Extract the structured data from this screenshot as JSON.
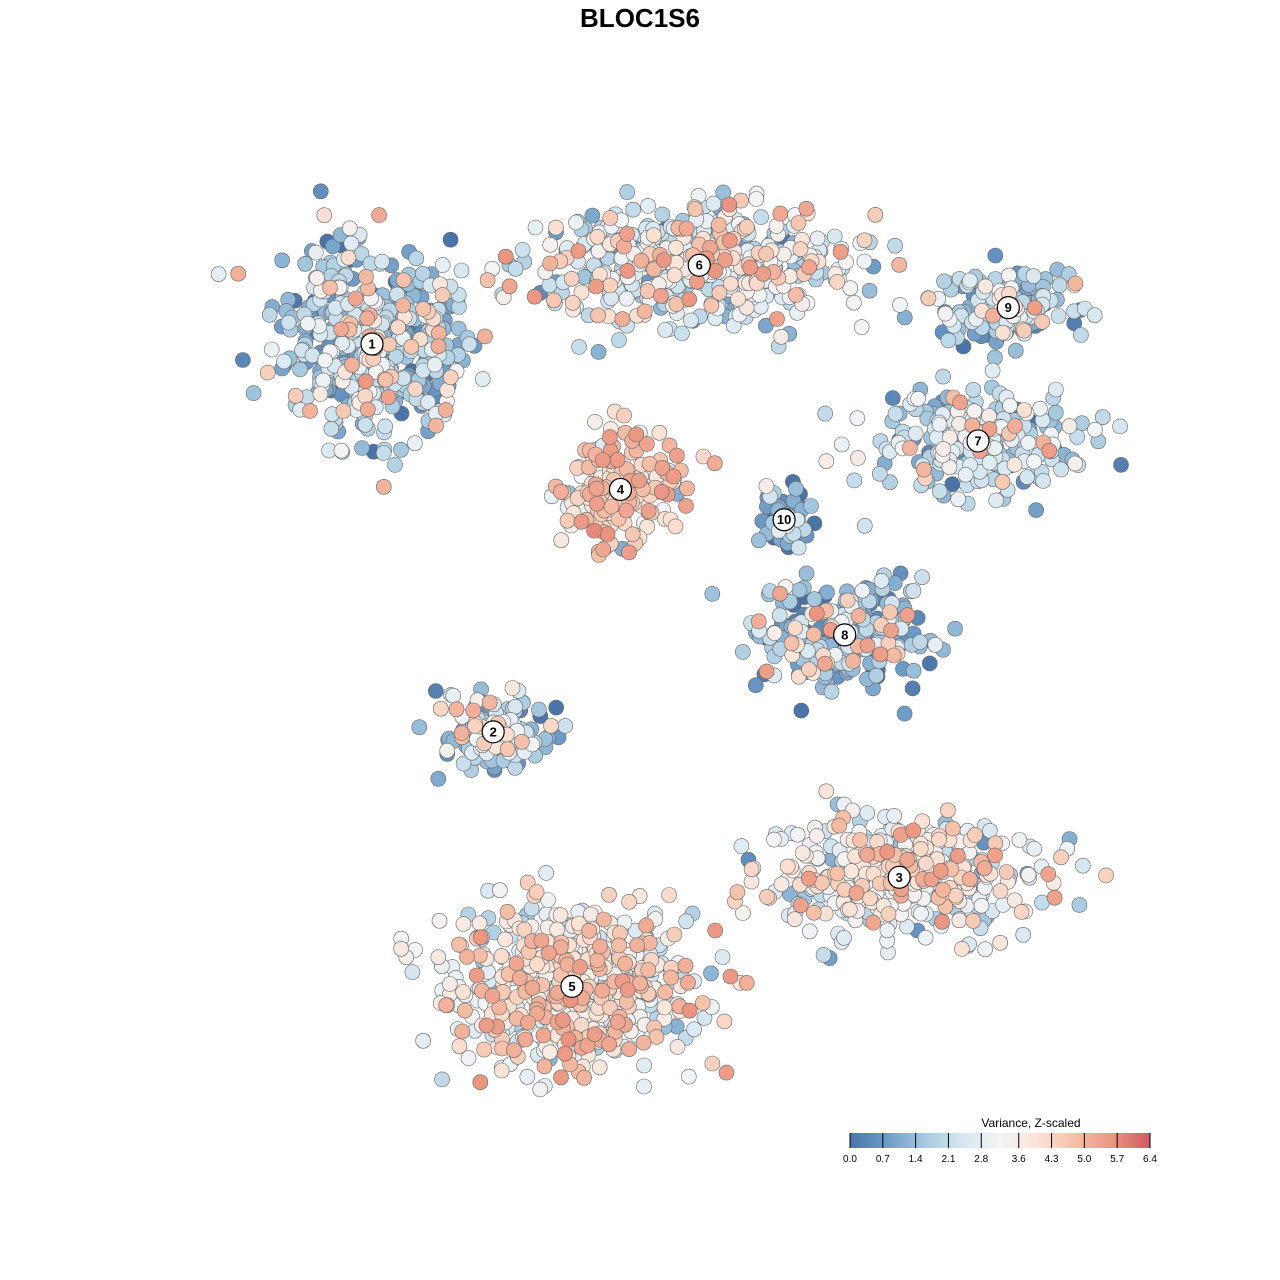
{
  "chart_data": {
    "type": "scatter",
    "title": "BLOC1S6",
    "xlabel": "",
    "ylabel": "",
    "grid": false,
    "legend": {
      "title": "Variance, Z-scaled",
      "placement": "bottom-right",
      "range": [
        0.0,
        6.4
      ],
      "ticks": [
        "0.0",
        "0.7",
        "1.4",
        "2.1",
        "2.8",
        "3.6",
        "4.3",
        "5.0",
        "5.7",
        "6.4"
      ],
      "colors": [
        "#4a74a8",
        "#6e9cc8",
        "#a6c9e0",
        "#d6e7f1",
        "#f2f4f6",
        "#fbe3d6",
        "#f5c0a8",
        "#eb9480",
        "#d05a63"
      ]
    },
    "clusters": [
      {
        "label": "1",
        "x": 0.0,
        "y": 0.0,
        "mean_z": 1.5,
        "n": 520,
        "hot": 0.1,
        "spread": [
          95,
          95
        ]
      },
      {
        "label": "2",
        "x": 2.0,
        "y": -6.4,
        "mean_z": 1.8,
        "n": 150,
        "hot": 0.12,
        "spread": [
          55,
          40
        ]
      },
      {
        "label": "3",
        "x": 8.7,
        "y": -8.8,
        "mean_z": 2.8,
        "n": 480,
        "hot": 0.14,
        "spread": [
          130,
          60
        ]
      },
      {
        "label": "4",
        "x": 4.1,
        "y": -2.4,
        "mean_z": 3.4,
        "n": 200,
        "hot": 0.45,
        "spread": [
          60,
          55
        ]
      },
      {
        "label": "5",
        "x": 3.3,
        "y": -10.6,
        "mean_z": 3.1,
        "n": 600,
        "hot": 0.25,
        "spread": [
          130,
          85
        ]
      },
      {
        "label": "6",
        "x": 5.4,
        "y": 1.3,
        "mean_z": 2.4,
        "n": 520,
        "hot": 0.15,
        "spread": [
          170,
          60
        ]
      },
      {
        "label": "7",
        "x": 10.0,
        "y": -1.6,
        "mean_z": 2.0,
        "n": 250,
        "hot": 0.08,
        "spread": [
          120,
          50
        ]
      },
      {
        "label": "8",
        "x": 7.8,
        "y": -4.8,
        "mean_z": 1.3,
        "n": 260,
        "hot": 0.12,
        "spread": [
          90,
          50
        ]
      },
      {
        "label": "9",
        "x": 10.5,
        "y": 0.6,
        "mean_z": 1.6,
        "n": 160,
        "hot": 0.05,
        "spread": [
          80,
          40
        ]
      },
      {
        "label": "10",
        "x": 6.8,
        "y": -2.9,
        "mean_z": 0.6,
        "n": 70,
        "hot": 0.0,
        "spread": [
          25,
          30
        ]
      }
    ]
  }
}
